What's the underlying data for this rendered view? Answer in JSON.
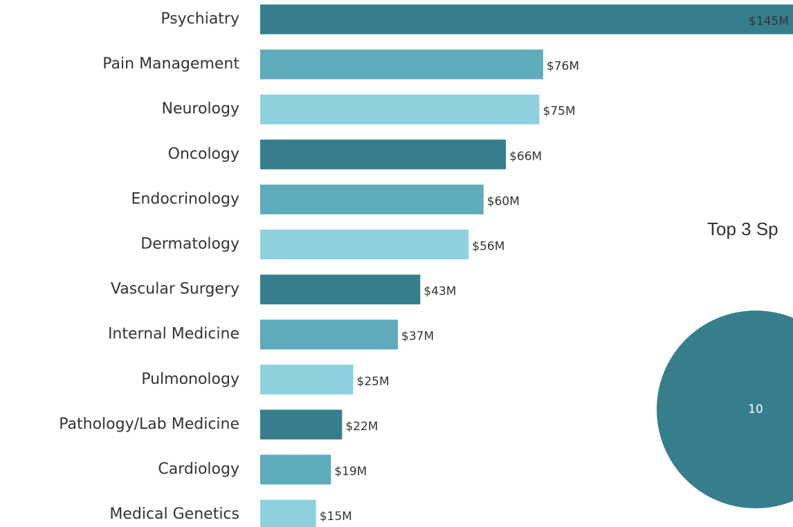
{
  "chart_data": [
    {
      "type": "bar",
      "orientation": "horizontal",
      "categories": [
        "Psychiatry",
        "Pain Management",
        "Neurology",
        "Oncology",
        "Endocrinology",
        "Dermatology",
        "Vascular Surgery",
        "Internal Medicine",
        "Pulmonology",
        "Pathology/Lab Medicine",
        "Cardiology",
        "Medical Genetics"
      ],
      "values": [
        145,
        76,
        75,
        66,
        60,
        56,
        43,
        37,
        25,
        22,
        19,
        15
      ],
      "value_labels": [
        "$145M",
        "$76M",
        "$75M",
        "$66M",
        "$60M",
        "$56M",
        "$43M",
        "$37M",
        "$25M",
        "$22M",
        "$19M",
        "$15M"
      ],
      "colors": [
        "#367e8c",
        "#5eabbb",
        "#8fd0df"
      ]
    },
    {
      "type": "pie",
      "title": "Top 3 Sp",
      "values": [
        10
      ],
      "color": "#367e8c"
    }
  ]
}
